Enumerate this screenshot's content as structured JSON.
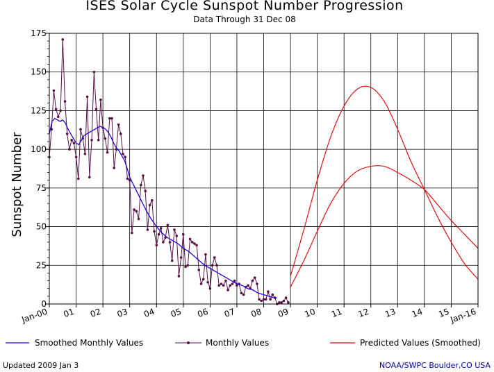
{
  "chart_data": {
    "type": "line",
    "title": "ISES Solar Cycle Sunspot Number Progression",
    "subtitle": "Data Through 31 Dec 08",
    "ylabel": "Sunspot Number",
    "xlabel": "",
    "ylim": [
      0,
      175
    ],
    "yticks": [
      0,
      25,
      50,
      75,
      100,
      125,
      150,
      175
    ],
    "xlim": [
      2000.0,
      2016.0
    ],
    "xtick_labels": [
      "Jan-00",
      "01",
      "02",
      "03",
      "04",
      "05",
      "06",
      "07",
      "08",
      "09",
      "10",
      "11",
      "12",
      "13",
      "14",
      "15",
      "Jan-16"
    ],
    "grid": true,
    "legend": {
      "position": "bottom"
    },
    "colors": {
      "smoothed": "#2200dd",
      "monthly": "#551144",
      "predicted": "#dd1111",
      "grid": "#000000"
    },
    "series": [
      {
        "name": "Smoothed Monthly Values",
        "x": [
          2000.0,
          2000.1,
          2000.2,
          2000.3,
          2000.4,
          2000.5,
          2000.6,
          2000.7,
          2000.8,
          2000.9,
          2001.0,
          2001.1,
          2001.2,
          2001.3,
          2001.4,
          2001.5,
          2001.6,
          2001.7,
          2001.8,
          2001.9,
          2002.0,
          2002.1,
          2002.2,
          2002.3,
          2002.4,
          2002.5,
          2002.6,
          2002.7,
          2002.8,
          2002.9,
          2003.0,
          2003.2,
          2003.4,
          2003.6,
          2003.8,
          2004.0,
          2004.2,
          2004.4,
          2004.6,
          2004.8,
          2005.0,
          2005.2,
          2005.4,
          2005.6,
          2005.8,
          2006.0,
          2006.2,
          2006.4,
          2006.6,
          2006.8,
          2007.0,
          2007.2,
          2007.4,
          2007.6,
          2007.8,
          2008.0,
          2008.2,
          2008.4,
          2008.5
        ],
        "values": [
          110,
          118,
          120,
          119,
          118,
          119,
          117,
          113,
          110,
          107,
          104,
          103,
          106,
          109,
          110,
          111,
          112,
          113,
          114,
          115,
          114,
          113,
          111,
          108,
          104,
          101,
          99,
          96,
          93,
          88,
          82,
          75,
          68,
          61,
          55,
          50,
          46,
          43,
          41,
          39,
          36,
          34,
          31,
          28,
          25,
          23,
          21,
          19,
          17,
          15,
          13,
          12,
          10,
          9,
          7,
          6,
          5,
          4,
          4
        ]
      },
      {
        "name": "Monthly Values",
        "x": [
          2000.0,
          2000.083,
          2000.167,
          2000.25,
          2000.333,
          2000.417,
          2000.5,
          2000.583,
          2000.667,
          2000.75,
          2000.833,
          2000.917,
          2001.0,
          2001.083,
          2001.167,
          2001.25,
          2001.333,
          2001.417,
          2001.5,
          2001.583,
          2001.667,
          2001.75,
          2001.833,
          2001.917,
          2002.0,
          2002.083,
          2002.167,
          2002.25,
          2002.333,
          2002.417,
          2002.5,
          2002.583,
          2002.667,
          2002.75,
          2002.833,
          2002.917,
          2003.0,
          2003.083,
          2003.167,
          2003.25,
          2003.333,
          2003.417,
          2003.5,
          2003.583,
          2003.667,
          2003.75,
          2003.833,
          2003.917,
          2004.0,
          2004.083,
          2004.167,
          2004.25,
          2004.333,
          2004.417,
          2004.5,
          2004.583,
          2004.667,
          2004.75,
          2004.833,
          2004.917,
          2005.0,
          2005.083,
          2005.167,
          2005.25,
          2005.333,
          2005.417,
          2005.5,
          2005.583,
          2005.667,
          2005.75,
          2005.833,
          2005.917,
          2006.0,
          2006.083,
          2006.167,
          2006.25,
          2006.333,
          2006.417,
          2006.5,
          2006.583,
          2006.667,
          2006.75,
          2006.833,
          2006.917,
          2007.0,
          2007.083,
          2007.167,
          2007.25,
          2007.333,
          2007.417,
          2007.5,
          2007.583,
          2007.667,
          2007.75,
          2007.833,
          2007.917,
          2008.0,
          2008.083,
          2008.167,
          2008.25,
          2008.333,
          2008.417,
          2008.5,
          2008.583,
          2008.667,
          2008.75,
          2008.833,
          2008.917
        ],
        "values": [
          95,
          113,
          138,
          126,
          121,
          125,
          171,
          131,
          110,
          100,
          106,
          104,
          95,
          81,
          113,
          107,
          97,
          134,
          82,
          106,
          150,
          126,
          106,
          132,
          114,
          107,
          98,
          120,
          120,
          88,
          100,
          116,
          110,
          97,
          95,
          81,
          80,
          46,
          61,
          60,
          55,
          77,
          83,
          73,
          48,
          64,
          67,
          47,
          38,
          45,
          49,
          40,
          43,
          51,
          40,
          28,
          48,
          44,
          18,
          30,
          45,
          24,
          25,
          42,
          40,
          39,
          38,
          22,
          13,
          16,
          32,
          14,
          10,
          25,
          30,
          25,
          12,
          13,
          12,
          15,
          9,
          12,
          13,
          15,
          12,
          13,
          7,
          6,
          11,
          12,
          10,
          15,
          17,
          13,
          3,
          2,
          3,
          3,
          8,
          3,
          6,
          4,
          0,
          1,
          1,
          2,
          4,
          1
        ]
      },
      {
        "name": "Predicted Values (Smoothed)",
        "curves": [
          {
            "x": [
              2009.0,
              2009.5,
              2010.0,
              2010.5,
              2011.0,
              2011.5,
              2012.0,
              2012.5,
              2013.0,
              2013.5,
              2014.0,
              2014.5,
              2015.0,
              2015.5,
              2016.0
            ],
            "values": [
              18,
              48,
              80,
              108,
              128,
              139,
              140,
              131,
              113,
              92,
              74,
              56,
              40,
              26,
              16
            ]
          },
          {
            "x": [
              2009.0,
              2009.5,
              2010.0,
              2010.5,
              2011.0,
              2011.5,
              2012.0,
              2012.5,
              2013.0,
              2013.5,
              2014.0,
              2014.5,
              2015.0,
              2015.5,
              2016.0
            ],
            "values": [
              11,
              28,
              47,
              65,
              78,
              86,
              89,
              89,
              85,
              80,
              74,
              64,
              54,
              45,
              36
            ]
          }
        ]
      }
    ]
  },
  "legend_items": [
    {
      "label": "Smoothed Monthly Values"
    },
    {
      "label": "Monthly Values"
    },
    {
      "label": "Predicted Values (Smoothed)"
    }
  ],
  "footer": {
    "updated": "Updated 2009 Jan  3",
    "credit": "NOAA/SWPC Boulder,CO USA"
  }
}
